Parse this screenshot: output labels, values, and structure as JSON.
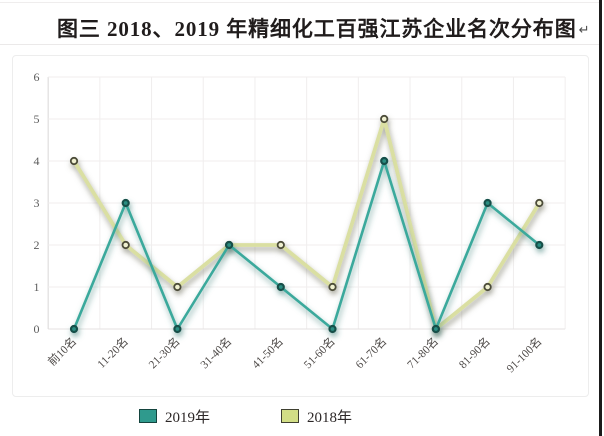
{
  "title": {
    "text": "图三 2018、2019 年精细化工百强江苏企业名次分布图",
    "return_mark": "↵"
  },
  "chart_data": {
    "type": "line",
    "categories": [
      "前10名",
      "11-20名",
      "21-30名",
      "31-40名",
      "41-50名",
      "51-60名",
      "61-70名",
      "71-80名",
      "81-90名",
      "91-100名"
    ],
    "series": [
      {
        "name": "2019年",
        "values": [
          0,
          3,
          0,
          2,
          1,
          0,
          4,
          0,
          3,
          2
        ],
        "line_color": "#3aa99c",
        "marker_fill": "#2b8d81",
        "marker_stroke": "#174f48",
        "swatch_fill": "#2f9a8d",
        "swatch_stroke": "#14443e",
        "shadow_color": "#3e7f76"
      },
      {
        "name": "2018年",
        "values": [
          4,
          2,
          1,
          2,
          2,
          1,
          5,
          0,
          1,
          3
        ],
        "line_color": "#dadfa2",
        "marker_fill": "#eff0d0",
        "marker_stroke": "#4b4b38",
        "swatch_fill": "#d2de86",
        "swatch_stroke": "#3f4030",
        "shadow_color": "#6a6a58"
      }
    ],
    "yticks": [
      0,
      1,
      2,
      3,
      4,
      5,
      6
    ],
    "ylim": [
      0,
      6
    ],
    "grid": true,
    "legend_position": "bottom",
    "axis_label_color": "#5c5c5c",
    "category_label_color": "#4e4a48",
    "gridline_color": "#f0eeee",
    "axis_line_color": "#d9d7d7"
  }
}
